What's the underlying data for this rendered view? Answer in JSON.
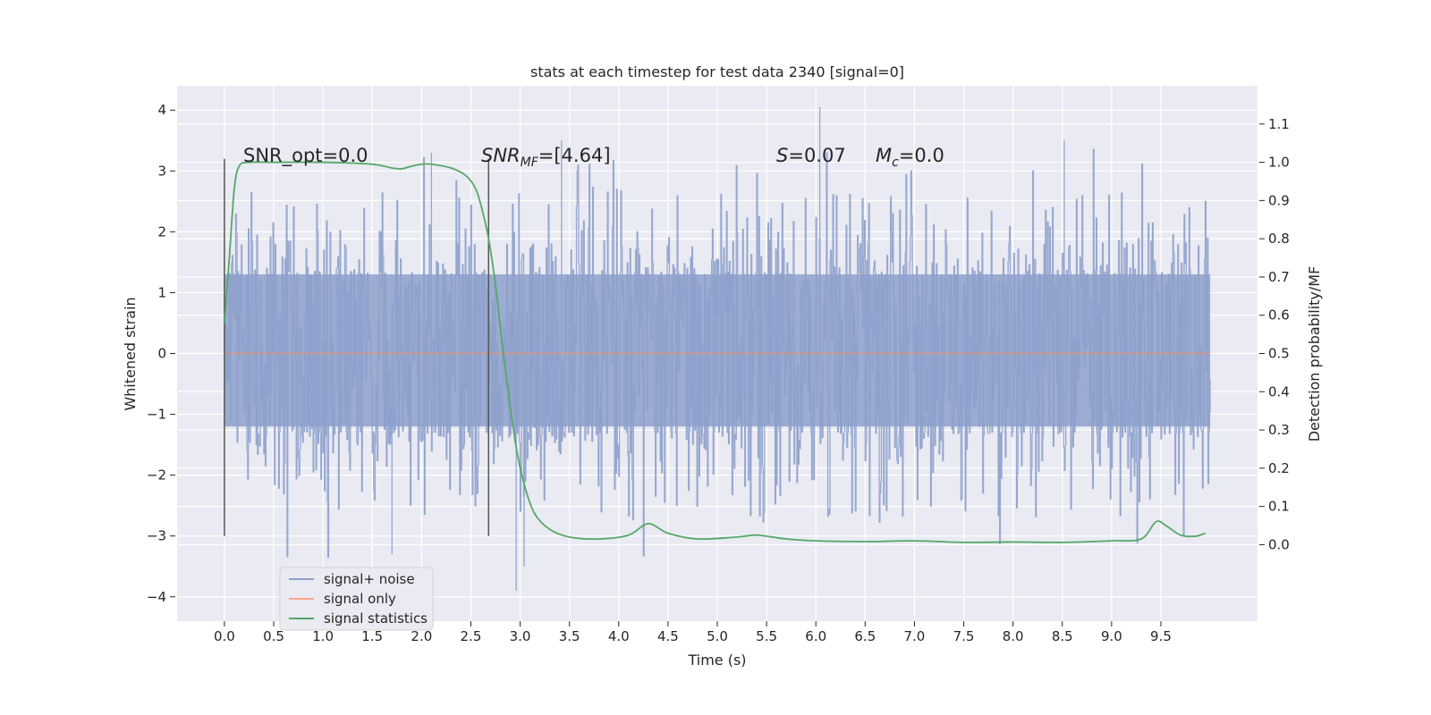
{
  "chart_data": {
    "type": "line",
    "title": "stats at each timestep for test data 2340 [signal=0]",
    "xlabel": "Time (s)",
    "ylabel": "Whitened strain",
    "y2label": "Detection probability/MF",
    "xlim": [
      -0.48,
      10.48
    ],
    "ylim": [
      -4.4,
      4.4
    ],
    "y2lim": [
      -0.2,
      1.2
    ],
    "xticks": [
      "0.0",
      "0.5",
      "1.0",
      "1.5",
      "2.0",
      "2.5",
      "3.0",
      "3.5",
      "4.0",
      "4.5",
      "5.0",
      "5.5",
      "6.0",
      "6.5",
      "7.0",
      "7.5",
      "8.0",
      "8.5",
      "9.0",
      "9.5"
    ],
    "yticks": [
      "4",
      "3",
      "2",
      "1",
      "0",
      "−1",
      "−2",
      "−3",
      "−4"
    ],
    "y2ticks": [
      "1.1",
      "1.0",
      "0.9",
      "0.8",
      "0.7",
      "0.6",
      "0.5",
      "0.4",
      "0.3",
      "0.2",
      "0.1",
      "0.0"
    ],
    "grid": true,
    "legend_position": "lower-left",
    "annotations": {
      "snr_opt": "SNR_opt=0.0",
      "snr_mf_main": "SNR",
      "snr_mf_sub": "MF",
      "snr_mf_rest": "=[4.64]",
      "s_label": "S",
      "s_rest": "=0.07",
      "mc_label": "M",
      "mc_sub": "c",
      "mc_rest": "=0.0"
    },
    "vertical_markers": [
      0.0,
      2.68
    ],
    "series": [
      {
        "name": "signal+ noise",
        "axis": "left",
        "color": "#8da0cb",
        "band_core": [
          -1.2,
          1.3
        ],
        "notable_peaks": [
          [
            6.04,
            4.05
          ],
          [
            8.52,
            3.5
          ],
          [
            3.42,
            3.5
          ],
          [
            2.1,
            3.3
          ],
          [
            2.96,
            -3.9
          ],
          [
            3.04,
            -3.5
          ],
          [
            1.7,
            -3.3
          ]
        ]
      },
      {
        "name": "signal only",
        "axis": "left",
        "color": "#fc8d62",
        "x": [
          0.0,
          10.0
        ],
        "y": [
          0.0,
          0.0
        ]
      },
      {
        "name": "signal statistics",
        "axis": "right",
        "color": "#55a868",
        "x": [
          0.0,
          0.05,
          0.1,
          0.15,
          0.25,
          0.5,
          1.0,
          1.5,
          1.7,
          1.8,
          1.9,
          2.0,
          2.1,
          2.3,
          2.45,
          2.55,
          2.62,
          2.68,
          2.75,
          2.82,
          2.9,
          2.97,
          3.05,
          3.15,
          3.3,
          3.5,
          3.8,
          4.1,
          4.3,
          4.5,
          4.8,
          5.2,
          5.4,
          5.7,
          6.0,
          6.5,
          7.0,
          7.5,
          8.0,
          8.5,
          9.0,
          9.3,
          9.45,
          9.55,
          9.7,
          9.85,
          9.95
        ],
        "y": [
          0.58,
          0.75,
          0.93,
          0.99,
          1.0,
          1.0,
          1.0,
          0.995,
          0.985,
          0.983,
          0.99,
          0.995,
          0.995,
          0.985,
          0.965,
          0.93,
          0.87,
          0.8,
          0.68,
          0.52,
          0.36,
          0.24,
          0.15,
          0.08,
          0.04,
          0.02,
          0.015,
          0.025,
          0.055,
          0.03,
          0.015,
          0.02,
          0.025,
          0.015,
          0.01,
          0.008,
          0.01,
          0.006,
          0.007,
          0.006,
          0.01,
          0.015,
          0.06,
          0.05,
          0.025,
          0.022,
          0.03
        ]
      }
    ]
  }
}
